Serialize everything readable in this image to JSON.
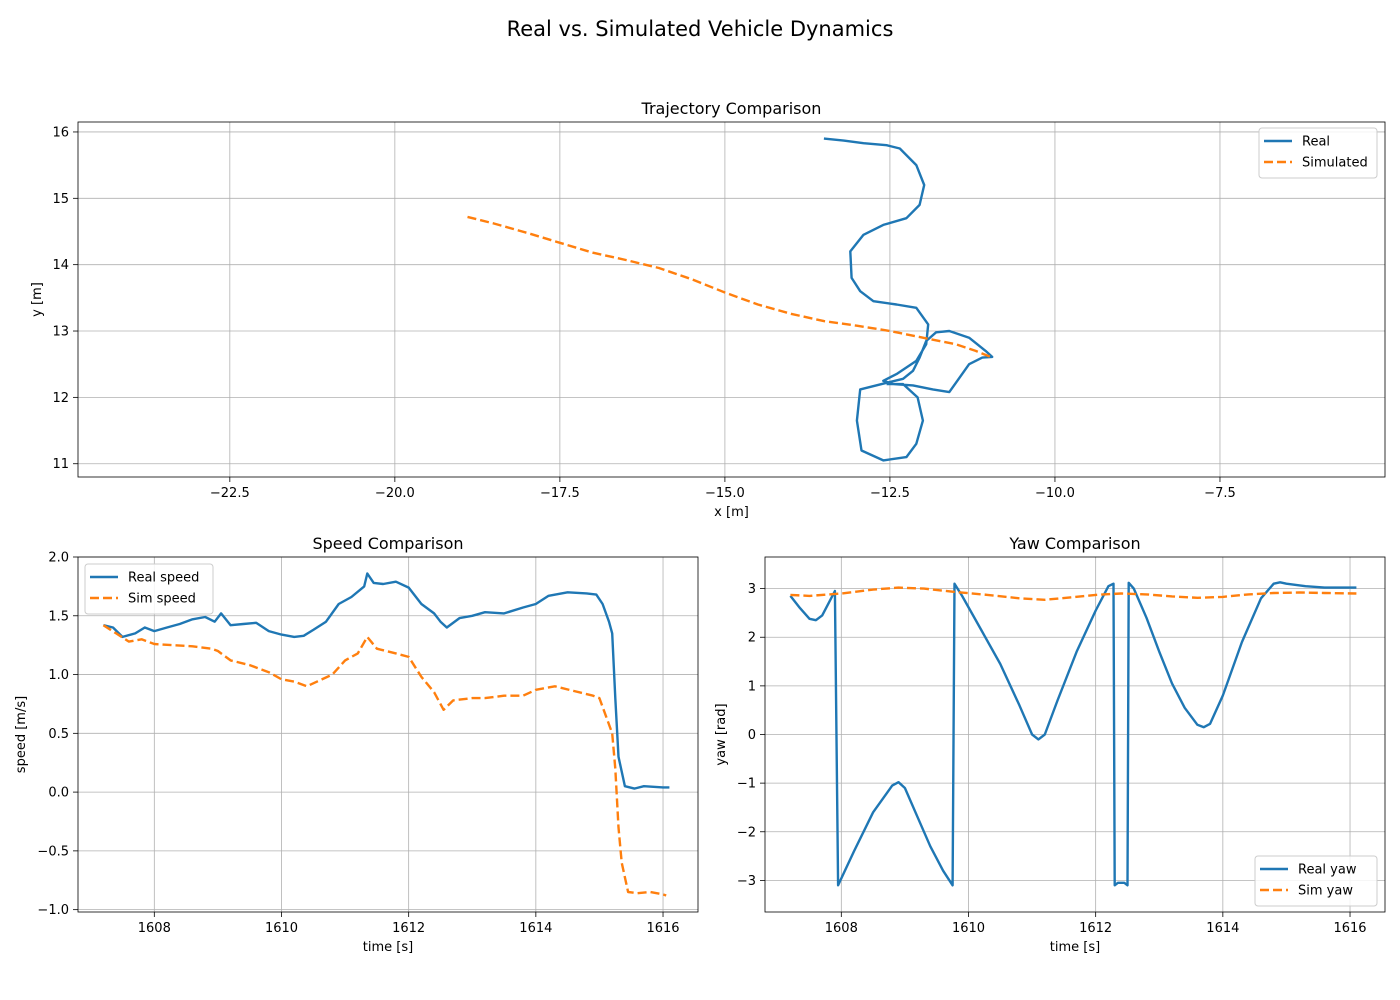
{
  "figure": {
    "title": "Real vs. Simulated Vehicle Dynamics"
  },
  "colors": {
    "real": "#1f77b4",
    "sim": "#ff7f0e",
    "grid": "#b0b0b0"
  },
  "chart_data": [
    {
      "type": "line",
      "title": "Trajectory Comparison",
      "xlabel": "x [m]",
      "ylabel": "y [m]",
      "xlim": [
        -24.8,
        -5.0
      ],
      "ylim": [
        10.8,
        16.15
      ],
      "xticks": [
        -22.5,
        -20.0,
        -17.5,
        -15.0,
        -12.5,
        -10.0,
        -7.5
      ],
      "xtick_labels": [
        "−22.5",
        "−20.0",
        "−17.5",
        "−15.0",
        "−12.5",
        "−10.0",
        "−7.5"
      ],
      "yticks": [
        11,
        12,
        13,
        14,
        15,
        16
      ],
      "ytick_labels": [
        "11",
        "12",
        "13",
        "14",
        "15",
        "16"
      ],
      "grid": true,
      "legend": "upper right",
      "series": [
        {
          "name": "Real",
          "style": "solid",
          "x": [
            -13.5,
            -13.2,
            -12.9,
            -12.55,
            -12.35,
            -12.1,
            -11.98,
            -12.05,
            -12.25,
            -12.6,
            -12.9,
            -13.1,
            -13.08,
            -12.95,
            -12.75,
            -12.4,
            -12.1,
            -11.92,
            -11.95,
            -12.1,
            -12.4,
            -12.6,
            -12.45,
            -12.15,
            -11.85,
            -11.6,
            -11.3,
            -11.1,
            -10.95,
            -11.05,
            -11.3,
            -11.6,
            -11.8,
            -11.95,
            -12.05,
            -12.15,
            -12.3,
            -12.55,
            -12.95,
            -13.0,
            -12.93,
            -12.6,
            -12.25,
            -12.1,
            -12.0,
            -12.08,
            -12.3,
            -12.55
          ],
          "y": [
            15.9,
            15.87,
            15.83,
            15.8,
            15.75,
            15.5,
            15.2,
            14.9,
            14.7,
            14.6,
            14.45,
            14.2,
            13.8,
            13.6,
            13.45,
            13.4,
            13.35,
            13.1,
            12.8,
            12.55,
            12.35,
            12.25,
            12.2,
            12.18,
            12.12,
            12.08,
            12.5,
            12.6,
            12.61,
            12.7,
            12.9,
            13.0,
            12.98,
            12.85,
            12.6,
            12.4,
            12.28,
            12.22,
            12.12,
            11.65,
            11.2,
            11.05,
            11.1,
            11.3,
            11.65,
            12.0,
            12.2,
            12.2
          ]
        },
        {
          "name": "Simulated",
          "style": "dashed",
          "x": [
            -18.9,
            -18.5,
            -18.0,
            -17.5,
            -17.0,
            -16.5,
            -16.0,
            -15.5,
            -15.0,
            -14.5,
            -14.0,
            -13.5,
            -13.0,
            -12.5,
            -12.0,
            -11.5,
            -11.2,
            -10.95
          ],
          "y": [
            14.72,
            14.62,
            14.48,
            14.33,
            14.18,
            14.07,
            13.95,
            13.78,
            13.58,
            13.4,
            13.26,
            13.15,
            13.08,
            13.0,
            12.9,
            12.8,
            12.7,
            12.6
          ]
        }
      ]
    },
    {
      "type": "line",
      "title": "Speed Comparison",
      "xlabel": "time [s]",
      "ylabel": "speed [m/s]",
      "xlim": [
        1606.8,
        1616.55
      ],
      "ylim": [
        -1.02,
        2.0
      ],
      "xticks": [
        1608,
        1610,
        1612,
        1614,
        1616
      ],
      "xtick_labels": [
        "1608",
        "1610",
        "1612",
        "1614",
        "1616"
      ],
      "yticks": [
        -1.0,
        -0.5,
        0.0,
        0.5,
        1.0,
        1.5,
        2.0
      ],
      "ytick_labels": [
        "−1.0",
        "−0.5",
        "0.0",
        "0.5",
        "1.0",
        "1.5",
        "2.0"
      ],
      "grid": true,
      "legend": "upper left",
      "series": [
        {
          "name": "Real speed",
          "style": "solid",
          "x": [
            1607.2,
            1607.35,
            1607.5,
            1607.7,
            1607.85,
            1608.0,
            1608.2,
            1608.4,
            1608.6,
            1608.8,
            1608.95,
            1609.05,
            1609.2,
            1609.4,
            1609.6,
            1609.8,
            1610.0,
            1610.2,
            1610.35,
            1610.5,
            1610.7,
            1610.9,
            1611.1,
            1611.3,
            1611.35,
            1611.45,
            1611.6,
            1611.8,
            1612.0,
            1612.2,
            1612.4,
            1612.5,
            1612.6,
            1612.8,
            1613.0,
            1613.2,
            1613.5,
            1613.8,
            1614.0,
            1614.2,
            1614.5,
            1614.8,
            1614.95,
            1615.05,
            1615.15,
            1615.2,
            1615.25,
            1615.3,
            1615.4,
            1615.55,
            1615.7,
            1616.0,
            1616.1
          ],
          "y": [
            1.42,
            1.4,
            1.32,
            1.35,
            1.4,
            1.37,
            1.4,
            1.43,
            1.47,
            1.49,
            1.45,
            1.52,
            1.42,
            1.43,
            1.44,
            1.37,
            1.34,
            1.32,
            1.33,
            1.38,
            1.45,
            1.6,
            1.66,
            1.75,
            1.86,
            1.78,
            1.77,
            1.79,
            1.74,
            1.6,
            1.52,
            1.45,
            1.4,
            1.48,
            1.5,
            1.53,
            1.52,
            1.57,
            1.6,
            1.67,
            1.7,
            1.69,
            1.68,
            1.6,
            1.45,
            1.35,
            0.8,
            0.3,
            0.05,
            0.03,
            0.05,
            0.04,
            0.04
          ]
        },
        {
          "name": "Sim speed",
          "style": "dashed",
          "x": [
            1607.2,
            1607.4,
            1607.6,
            1607.8,
            1608.0,
            1608.3,
            1608.6,
            1608.9,
            1609.0,
            1609.2,
            1609.5,
            1609.8,
            1610.0,
            1610.2,
            1610.4,
            1610.6,
            1610.8,
            1611.0,
            1611.2,
            1611.35,
            1611.5,
            1611.8,
            1612.0,
            1612.2,
            1612.4,
            1612.55,
            1612.7,
            1613.0,
            1613.2,
            1613.5,
            1613.8,
            1614.0,
            1614.3,
            1614.6,
            1614.9,
            1615.0,
            1615.1,
            1615.2,
            1615.25,
            1615.3,
            1615.35,
            1615.45,
            1615.6,
            1615.8,
            1616.0,
            1616.05
          ],
          "y": [
            1.42,
            1.35,
            1.28,
            1.3,
            1.26,
            1.25,
            1.24,
            1.22,
            1.2,
            1.12,
            1.08,
            1.02,
            0.96,
            0.94,
            0.9,
            0.95,
            1.0,
            1.12,
            1.18,
            1.32,
            1.22,
            1.18,
            1.15,
            0.98,
            0.85,
            0.7,
            0.78,
            0.8,
            0.8,
            0.82,
            0.82,
            0.87,
            0.9,
            0.86,
            0.82,
            0.8,
            0.65,
            0.5,
            0.2,
            -0.3,
            -0.6,
            -0.85,
            -0.86,
            -0.85,
            -0.87,
            -0.88
          ]
        }
      ]
    },
    {
      "type": "line",
      "title": "Yaw Comparison",
      "xlabel": "time [s]",
      "ylabel": "yaw [rad]",
      "xlim": [
        1606.8,
        1616.55
      ],
      "ylim": [
        -3.65,
        3.65
      ],
      "xticks": [
        1608,
        1610,
        1612,
        1614,
        1616
      ],
      "xtick_labels": [
        "1608",
        "1610",
        "1612",
        "1614",
        "1616"
      ],
      "yticks": [
        -3,
        -2,
        -1,
        0,
        1,
        2,
        3
      ],
      "ytick_labels": [
        "−3",
        "−2",
        "−1",
        "0",
        "1",
        "2",
        "3"
      ],
      "grid": true,
      "legend": "lower right",
      "series": [
        {
          "name": "Real yaw",
          "style": "solid",
          "x": [
            1607.2,
            1607.35,
            1607.5,
            1607.6,
            1607.7,
            1607.8,
            1607.9,
            1607.95,
            1608.2,
            1608.5,
            1608.8,
            1608.9,
            1609.0,
            1609.2,
            1609.4,
            1609.6,
            1609.75,
            1609.78,
            1609.9,
            1610.2,
            1610.5,
            1610.8,
            1611.0,
            1611.1,
            1611.2,
            1611.4,
            1611.7,
            1612.0,
            1612.2,
            1612.28,
            1612.3,
            1612.35,
            1612.45,
            1612.5,
            1612.52,
            1612.6,
            1612.8,
            1613.0,
            1613.2,
            1613.4,
            1613.6,
            1613.7,
            1613.8,
            1614.0,
            1614.3,
            1614.6,
            1614.8,
            1614.9,
            1615.0,
            1615.3,
            1615.6,
            1616.1
          ],
          "y": [
            2.85,
            2.6,
            2.38,
            2.35,
            2.45,
            2.7,
            2.95,
            -3.1,
            -2.4,
            -1.6,
            -1.05,
            -0.98,
            -1.1,
            -1.7,
            -2.3,
            -2.8,
            -3.1,
            3.1,
            2.85,
            2.15,
            1.45,
            0.6,
            0.0,
            -0.1,
            0.0,
            0.7,
            1.7,
            2.55,
            3.05,
            3.1,
            -3.1,
            -3.05,
            -3.05,
            -3.1,
            3.12,
            3.0,
            2.4,
            1.7,
            1.05,
            0.55,
            0.2,
            0.15,
            0.22,
            0.8,
            1.9,
            2.8,
            3.1,
            3.13,
            3.1,
            3.05,
            3.02,
            3.02
          ]
        },
        {
          "name": "Sim yaw",
          "style": "dashed",
          "x": [
            1607.2,
            1607.5,
            1608.0,
            1608.5,
            1608.9,
            1609.3,
            1609.8,
            1610.3,
            1610.8,
            1611.2,
            1611.6,
            1612.0,
            1612.4,
            1612.8,
            1613.2,
            1613.6,
            1614.0,
            1614.4,
            1614.8,
            1615.2,
            1615.6,
            1616.1
          ],
          "y": [
            2.87,
            2.85,
            2.9,
            2.98,
            3.02,
            3.0,
            2.93,
            2.87,
            2.8,
            2.77,
            2.82,
            2.87,
            2.9,
            2.88,
            2.84,
            2.81,
            2.83,
            2.88,
            2.91,
            2.92,
            2.91,
            2.9
          ]
        }
      ]
    }
  ]
}
